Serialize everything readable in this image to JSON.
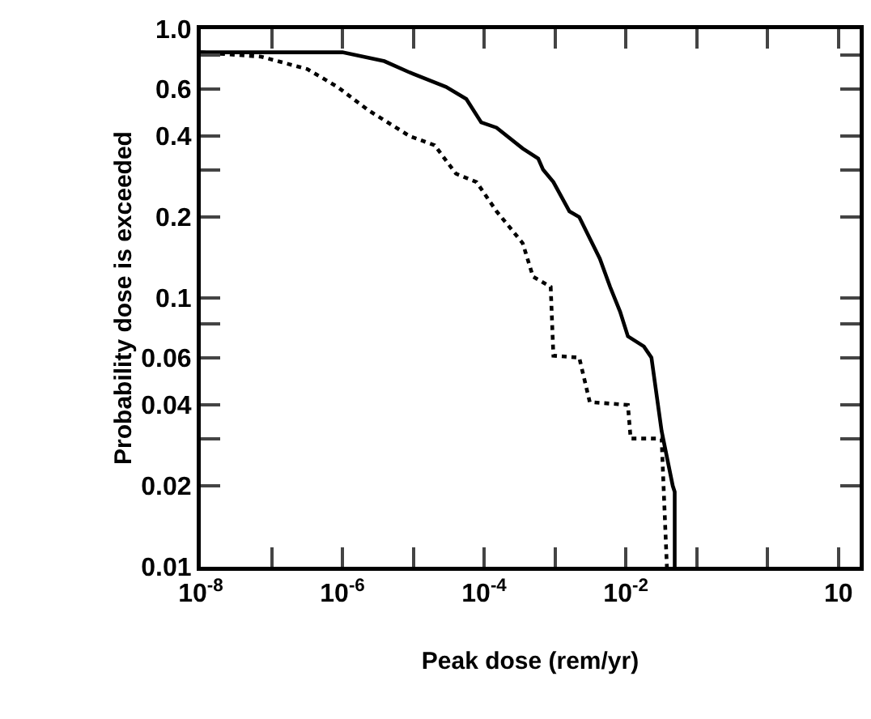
{
  "chart_data": {
    "type": "line",
    "xlabel": "Peak dose (rem/yr)",
    "ylabel": "Probability dose is exceeded",
    "log": "xy",
    "grid": false,
    "marker": "none",
    "xlim": [
      1e-08,
      20
    ],
    "ylim": [
      0.01,
      1
    ],
    "xticks": [
      {
        "value": 1e-08,
        "label": "10$^{-8}$"
      },
      {
        "value": 1e-07,
        "label": null
      },
      {
        "value": 1e-06,
        "label": "10$^{-6}$"
      },
      {
        "value": 1e-05,
        "label": null
      },
      {
        "value": 0.0001,
        "label": "10$^{-4}$"
      },
      {
        "value": 0.001,
        "label": null
      },
      {
        "value": 0.01,
        "label": "10$^{-2}$"
      },
      {
        "value": 0.1,
        "label": null
      },
      {
        "value": 1,
        "label": null
      },
      10
    ],
    "yticks": [
      {
        "value": 1,
        "label": "1.0"
      },
      {
        "value": 0.8,
        "label": null
      },
      0.6,
      0.4,
      {
        "value": 0.3,
        "label": null
      },
      0.2,
      0.1,
      {
        "value": 0.08,
        "label": null
      },
      0.06,
      0.04,
      {
        "value": 0.03,
        "label": null
      },
      0.02,
      0.01
    ],
    "series": [
      {
        "color": "#000000",
        "line_style": "solid",
        "x": [
          1e-08,
          1e-06,
          3.9e-06,
          8.9e-06,
          2.9e-05,
          5.6e-05,
          9.1e-05,
          0.00015,
          0.00035,
          0.00058,
          0.00068,
          0.00095,
          0.0016,
          0.0022,
          0.0043,
          0.006,
          0.0083,
          0.0107,
          0.018,
          0.023,
          0.032,
          0.046,
          0.049,
          0.049
        ],
        "values": [
          0.82,
          0.82,
          0.76,
          0.69,
          0.61,
          0.55,
          0.45,
          0.43,
          0.36,
          0.33,
          0.3,
          0.27,
          0.21,
          0.2,
          0.14,
          0.11,
          0.089,
          0.072,
          0.066,
          0.06,
          0.032,
          0.02,
          0.019,
          0.01
        ]
      },
      {
        "color": "#000000",
        "line_style": "dotted",
        "x": [
          1e-08,
          7.1e-08,
          3.2e-07,
          8.5e-07,
          2.3e-06,
          8.9e-06,
          2e-05,
          4e-05,
          7.8e-05,
          0.00015,
          0.00035,
          0.00049,
          0.00087,
          0.00095,
          0.0022,
          0.0031,
          0.0107,
          0.0117,
          0.032,
          0.038
        ],
        "values": [
          0.82,
          0.79,
          0.71,
          0.61,
          0.5,
          0.4,
          0.37,
          0.29,
          0.27,
          0.21,
          0.16,
          0.12,
          0.11,
          0.061,
          0.06,
          0.041,
          0.04,
          0.03,
          0.03,
          0.01
        ]
      }
    ]
  }
}
